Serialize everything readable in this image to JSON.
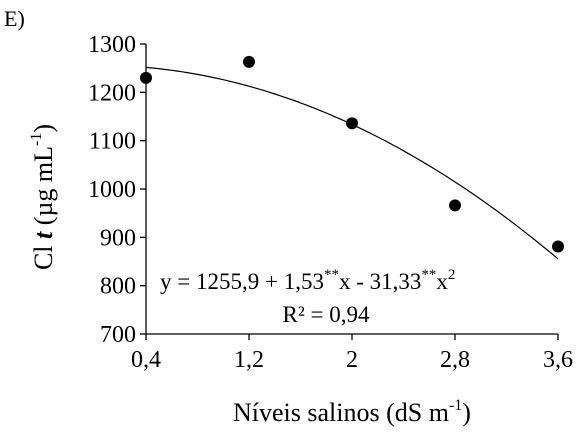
{
  "chart_data": {
    "type": "scatter",
    "panel_label": "E)",
    "xlabel_main": "Níveis salinos (dS m",
    "xlabel_sup": "-1",
    "xlabel_end": ")",
    "ylabel_a": "Cl ",
    "ylabel_t": "t",
    "ylabel_b": " (µg mL",
    "ylabel_sup": "-1",
    "ylabel_end": ")",
    "x_ticks": [
      0.4,
      1.2,
      2.0,
      2.8,
      3.6
    ],
    "x_tick_labels": [
      "0,4",
      "1,2",
      "2",
      "2,8",
      "3,6"
    ],
    "y_ticks": [
      700,
      800,
      900,
      1000,
      1100,
      1200,
      1300
    ],
    "y_tick_labels": [
      "700",
      "800",
      "900",
      "1000",
      "1100",
      "1200",
      "1300"
    ],
    "xlim": [
      0.4,
      3.6
    ],
    "ylim": [
      700,
      1300
    ],
    "points": [
      {
        "x": 0.4,
        "y": 1230
      },
      {
        "x": 1.2,
        "y": 1263
      },
      {
        "x": 2.0,
        "y": 1136
      },
      {
        "x": 2.8,
        "y": 966
      },
      {
        "x": 3.6,
        "y": 881
      }
    ],
    "trendline": {
      "intercept": 1255.9,
      "b1": 1.53,
      "b2": -31.33
    },
    "equation": {
      "prefix": "y =  1255,9 + 1,53",
      "sig1": "**",
      "mid": "x  - 31,33",
      "sig2": "**",
      "x_var": "x",
      "power": "2"
    },
    "r2_text": "R² = 0,94",
    "grid": false,
    "legend": "none"
  }
}
